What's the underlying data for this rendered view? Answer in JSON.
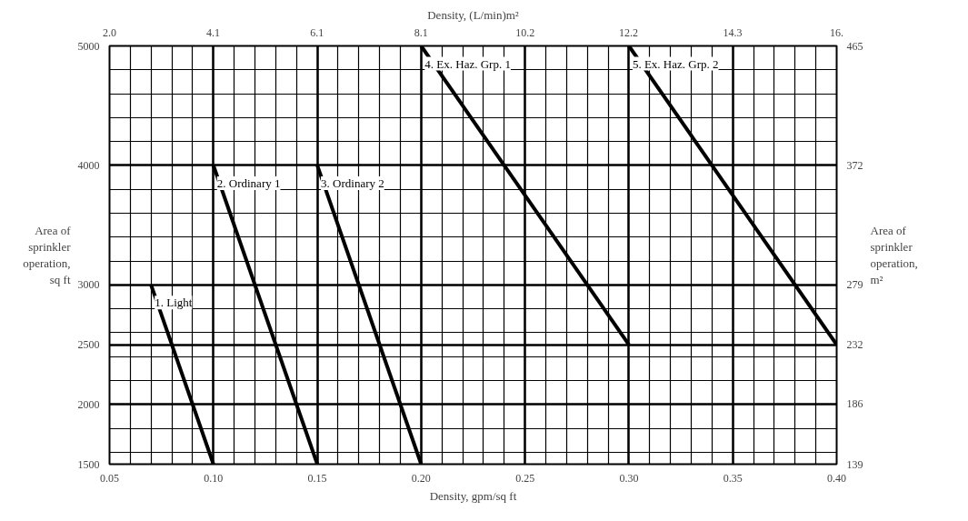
{
  "chart_data": {
    "type": "line",
    "xlabel": "Density, gpm/sq ft",
    "ylabel": "Area of\nsprinkler\noperation,\nsq ft",
    "y2label": "Area of\nsprinkler\noperation,\nm²",
    "x2label": "Density, (L/min)m²",
    "xlim": [
      0.05,
      0.4
    ],
    "xticks": [
      {
        "value": 0.05,
        "label": "0.05"
      },
      {
        "value": 0.1,
        "label": "0.10"
      },
      {
        "value": 0.15,
        "label": "0.15"
      },
      {
        "value": 0.2,
        "label": "0.20"
      },
      {
        "value": 0.25,
        "label": "0.25"
      },
      {
        "value": 0.3,
        "label": "0.30"
      },
      {
        "value": 0.35,
        "label": "0.35"
      },
      {
        "value": 0.4,
        "label": "0.40"
      }
    ],
    "ylim": [
      1500,
      5000
    ],
    "yticks": [
      1500,
      2000,
      2500,
      3000,
      4000,
      5000
    ],
    "y2lim": [
      139,
      465
    ],
    "y2ticks": [
      139,
      186,
      232,
      279,
      372,
      465
    ],
    "x2lim": [
      2.04,
      16.3
    ],
    "x2ticks": [
      {
        "value": 2.04,
        "label": "2.0"
      },
      {
        "value": 4.07,
        "label": "4.1"
      },
      {
        "value": 6.11,
        "label": "6.1"
      },
      {
        "value": 8.15,
        "label": "8.1"
      },
      {
        "value": 10.19,
        "label": "10.2"
      },
      {
        "value": 12.22,
        "label": "12.2"
      },
      {
        "value": 14.26,
        "label": "14.3"
      },
      {
        "value": 16.3,
        "label": "16."
      }
    ],
    "grid": true,
    "marker": "none",
    "line_style": "solid",
    "series": [
      {
        "name": "1. Light",
        "color": "#000000",
        "x": [
          0.07,
          0.1
        ],
        "values": [
          3000,
          1500
        ]
      },
      {
        "name": "2. Ordinary 1",
        "color": "#000000",
        "x": [
          0.1,
          0.15
        ],
        "values": [
          4000,
          1500
        ]
      },
      {
        "name": "3. Ordinary 2",
        "color": "#000000",
        "x": [
          0.15,
          0.2
        ],
        "values": [
          4000,
          1500
        ]
      },
      {
        "name": "4. Ex. Haz. Grp. 1",
        "color": "#000000",
        "x": [
          0.2,
          0.3
        ],
        "values": [
          5000,
          2500
        ]
      },
      {
        "name": "5. Ex. Haz. Grp. 2",
        "color": "#000000",
        "x": [
          0.3,
          0.4
        ],
        "values": [
          5000,
          2500
        ]
      }
    ]
  }
}
